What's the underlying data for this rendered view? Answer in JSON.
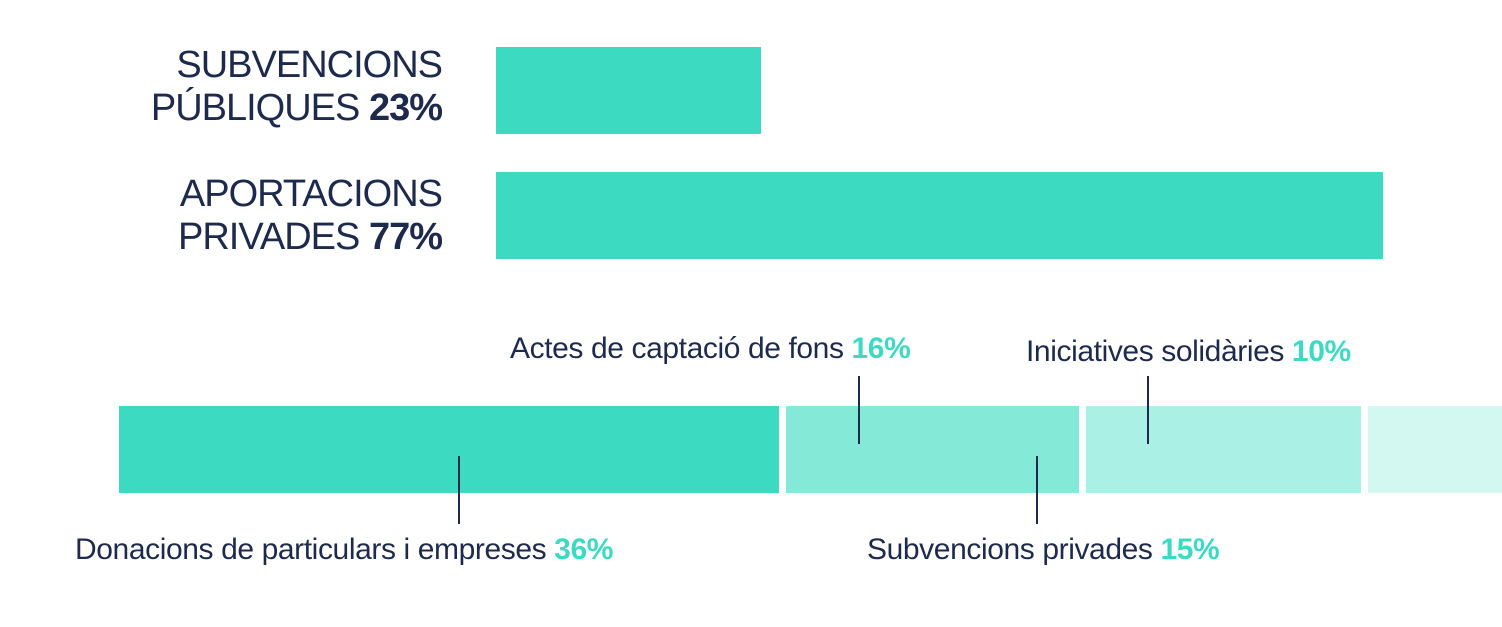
{
  "colors": {
    "text": "#1e2a4c",
    "accent": "#3ddac2",
    "segments": [
      "#3ddac2",
      "#85e9d8",
      "#aaf0e4",
      "#d3f7f1"
    ]
  },
  "chart_data": [
    {
      "type": "bar",
      "orientation": "horizontal",
      "categories": [
        {
          "line1": "SUBVENCIONS",
          "line2": "PÚBLIQUES"
        },
        {
          "line1": "APORTACIONS",
          "line2": "PRIVADES"
        }
      ],
      "values": [
        23,
        77
      ],
      "value_labels": [
        "23%",
        "77%"
      ],
      "xlim": [
        0,
        77
      ]
    },
    {
      "type": "bar",
      "orientation": "stacked-horizontal",
      "segments": [
        {
          "name": "Donacions de particulars i empreses",
          "value": 36,
          "value_label": "36%",
          "label_position": "below"
        },
        {
          "name": "Actes de captació de fons",
          "value": 16,
          "value_label": "16%",
          "label_position": "above"
        },
        {
          "name": "Subvencions privades",
          "value": 15,
          "value_label": "15%",
          "label_position": "below"
        },
        {
          "name": "Iniciatives solidàries",
          "value": 10,
          "value_label": "10%",
          "label_position": "above"
        }
      ]
    }
  ]
}
